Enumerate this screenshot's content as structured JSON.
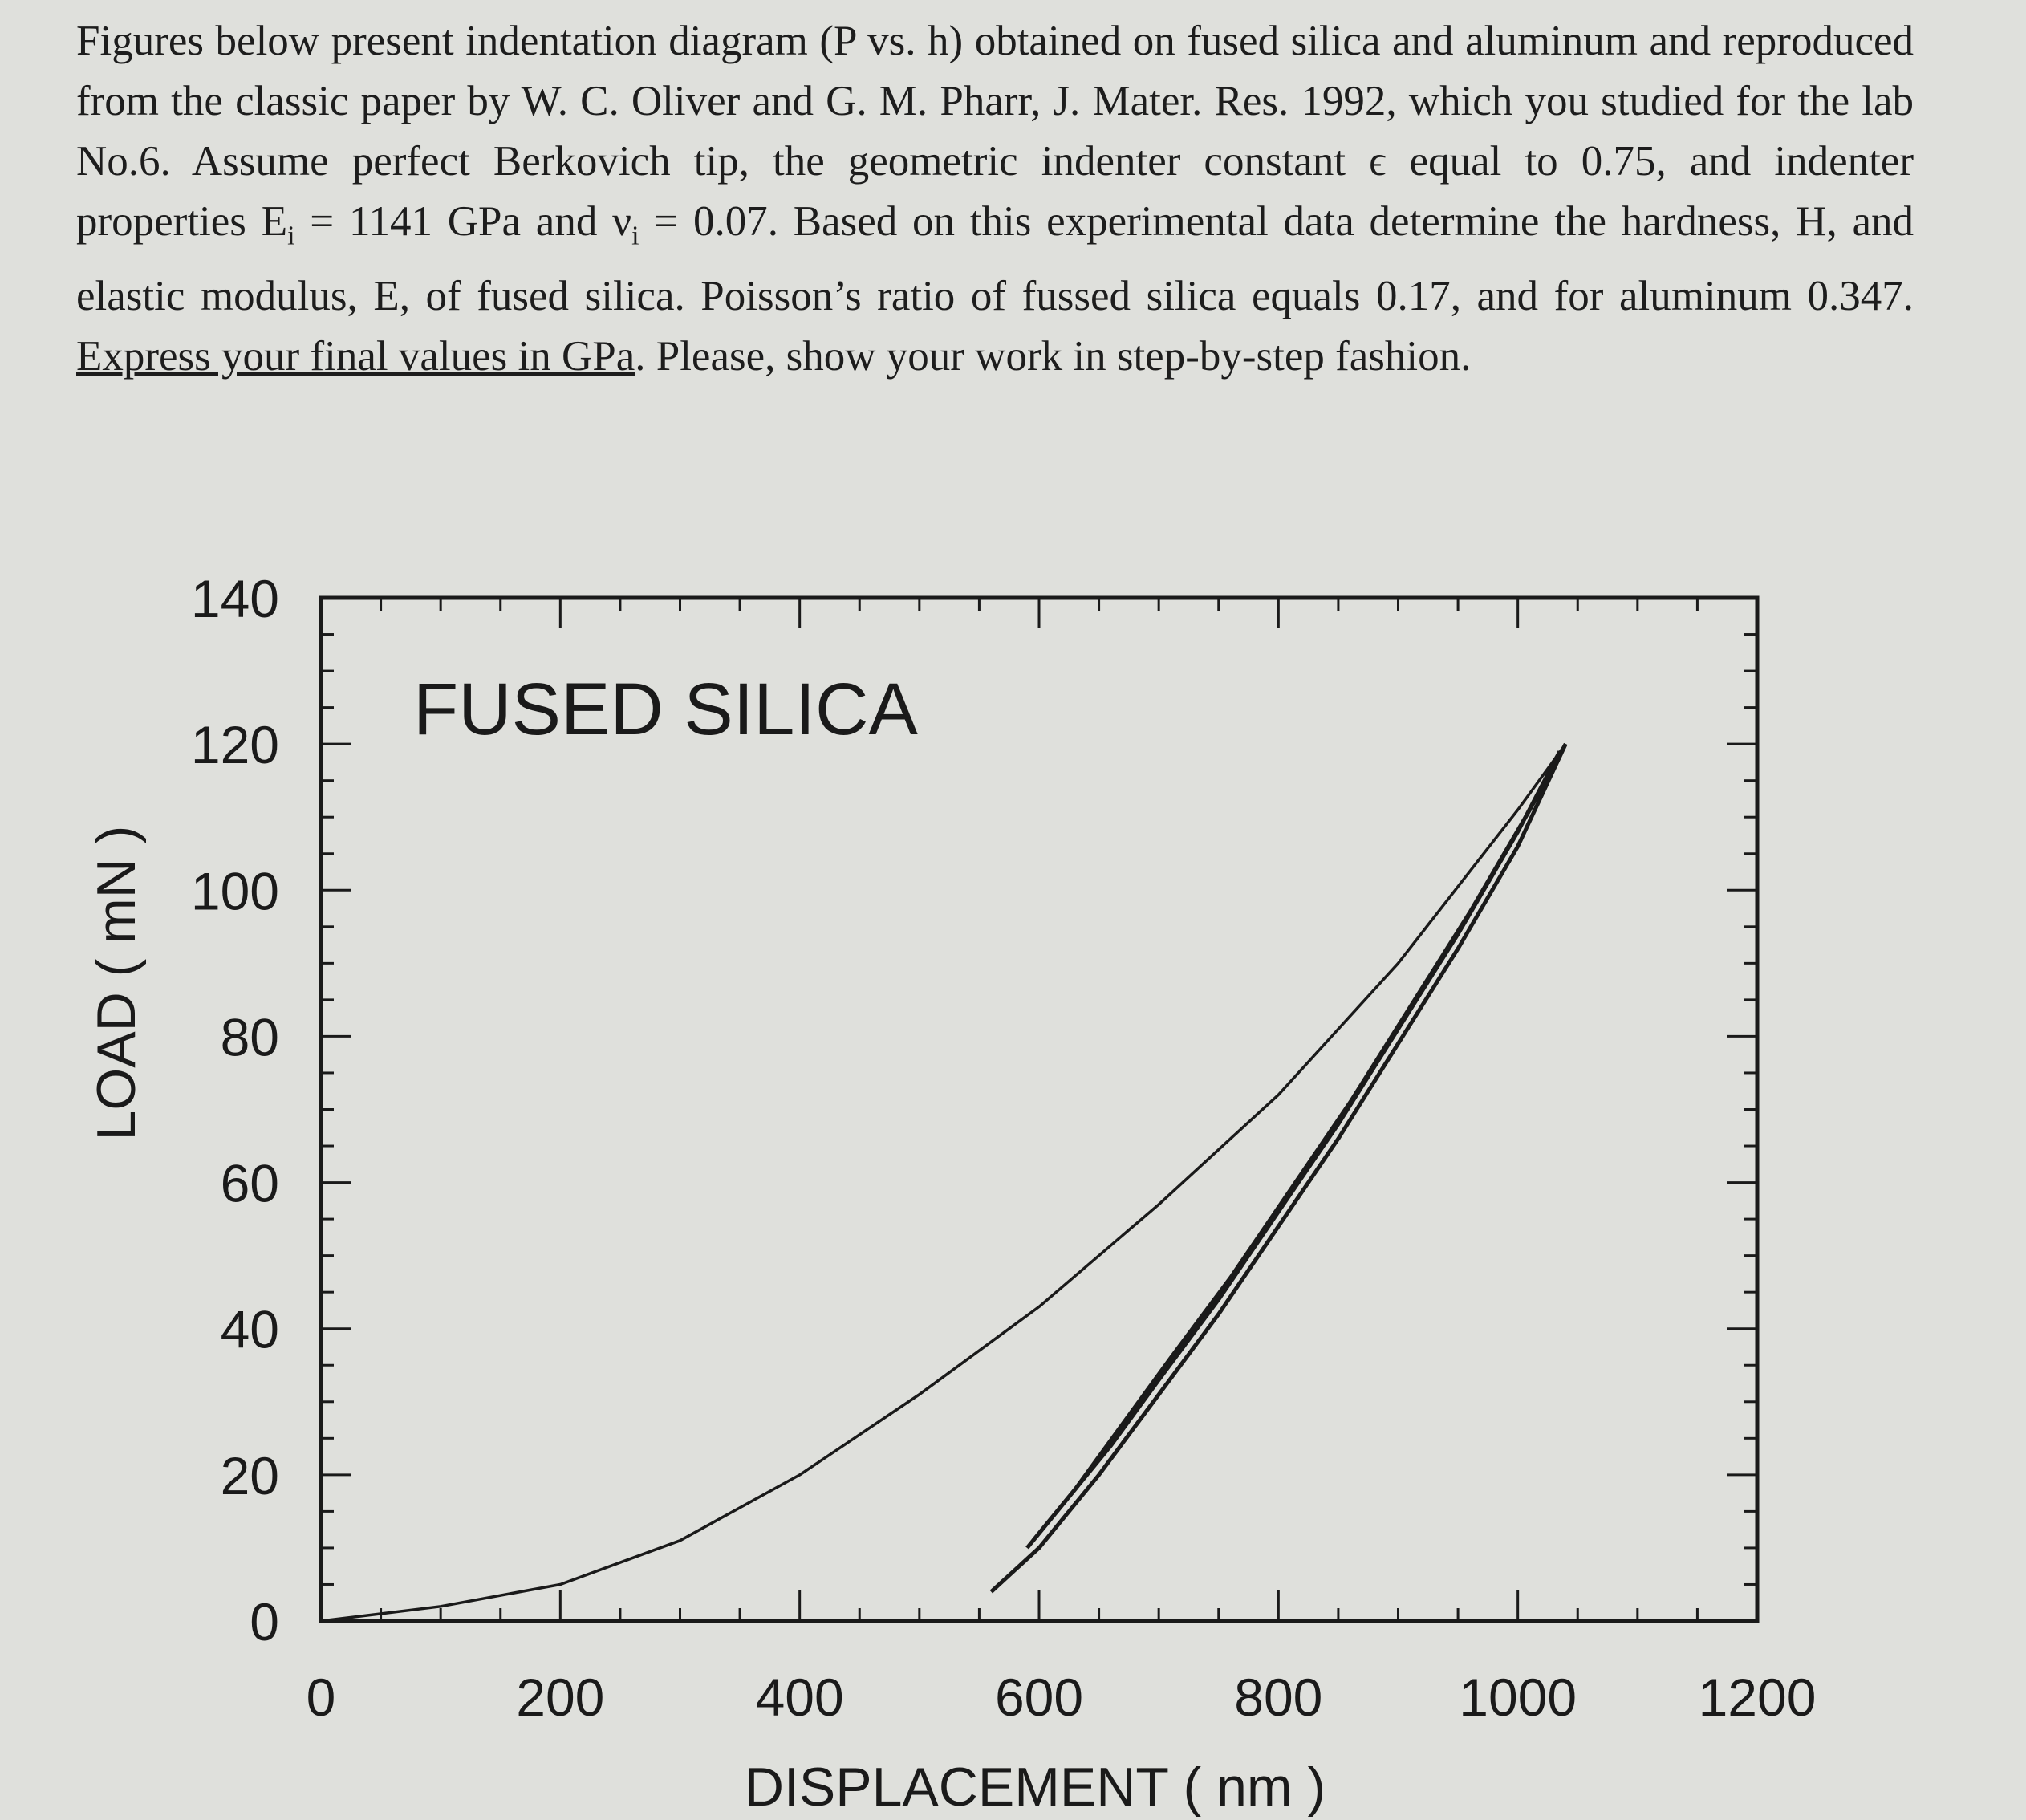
{
  "problem": {
    "line1": "Figures below present indentation diagram (P vs. h) obtained on fused silica and aluminum and reproduced from the classic paper by W. C. Oliver and G. M. Pharr, J. Mater. Res. 1992, which you studied for the lab No.6. Assume perfect Berkovich tip, the geometric indenter constant ϵ equal to 0.75, and indenter properties E",
    "sub_i1": "i",
    "line2": " = 1141 GPa and ν",
    "sub_i2": "i",
    "line3": " = 0.07. Based on this experimental data determine the hardness, H, and elastic modulus, E, of fused silica. Poisson’s ratio of fussed silica equals 0.17, and for aluminum 0.347. ",
    "underlined": "Express your final values in GPa",
    "line4": ". Please, show your work in step-by-step fashion."
  },
  "chart_data": {
    "type": "line",
    "title": "FUSED SILICA",
    "xlabel": "DISPLACEMENT ( nm )",
    "ylabel": "LOAD ( mN )",
    "xlim": [
      0,
      1200
    ],
    "ylim": [
      0,
      140
    ],
    "x_ticks": [
      "0",
      "200",
      "400",
      "600",
      "800",
      "1000",
      "1200"
    ],
    "y_ticks": [
      "0",
      "20",
      "40",
      "60",
      "80",
      "100",
      "120",
      "140"
    ],
    "grid": false,
    "series": [
      {
        "role": "loading",
        "x": [
          0,
          100,
          200,
          300,
          400,
          500,
          600,
          700,
          800,
          900,
          1000,
          1040
        ],
        "y": [
          0,
          2,
          5,
          11,
          20,
          31,
          43,
          57,
          72,
          90,
          111,
          120
        ],
        "color": "#1a1a1a"
      },
      {
        "role": "unloading",
        "x": [
          560,
          600,
          650,
          700,
          750,
          800,
          850,
          900,
          950,
          1000,
          1040
        ],
        "y": [
          4,
          10,
          20,
          31,
          42,
          54,
          66,
          79,
          92,
          106,
          120
        ],
        "color": "#1a1a1a"
      },
      {
        "role": "reloading",
        "x": [
          590,
          620,
          660,
          700,
          750,
          800,
          850,
          900,
          950,
          1000,
          1035
        ],
        "y": [
          10,
          16,
          24,
          33,
          44,
          56,
          68,
          81,
          94,
          108,
          119
        ],
        "color": "#1a1a1a"
      },
      {
        "role": "unloading-repeat",
        "x": [
          595,
          630,
          670,
          710,
          760,
          810,
          860,
          910,
          960,
          1010,
          1040
        ],
        "y": [
          11,
          18,
          27,
          36,
          47,
          59,
          71,
          84,
          97,
          111,
          120
        ],
        "color": "#1a1a1a"
      }
    ]
  }
}
